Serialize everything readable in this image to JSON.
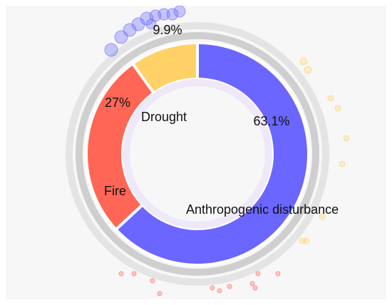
{
  "chart_data": {
    "type": "pie",
    "donut": true,
    "categories": [
      "Anthropogenic disturbance",
      "Fire",
      "Drought"
    ],
    "values": [
      63.1,
      27.0,
      9.9
    ],
    "percent_labels": [
      "63.1%",
      "27%",
      "9.9%"
    ],
    "colors": [
      "#6b66ff",
      "#ff6655",
      "#ffd166"
    ],
    "legend": "none"
  }
}
